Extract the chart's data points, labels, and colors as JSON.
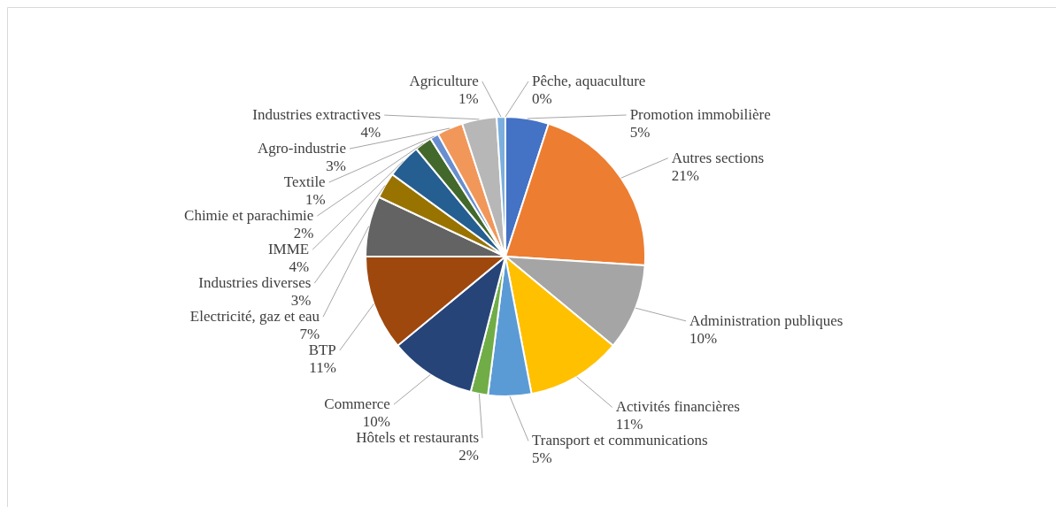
{
  "chart_data": {
    "type": "pie",
    "categories": [
      "Promotion immobilière",
      "Autres sections",
      "Administration publiques",
      "Activités financières",
      "Transport et communications",
      "Hôtels et restaurants",
      "Commerce",
      "BTP",
      "Electricité, gaz et eau",
      "Industries diverses",
      "IMME",
      "Chimie et parachimie",
      "Textile",
      "Agro-industrie",
      "Industries extractives",
      "Agriculture",
      "Pêche, aquaculture"
    ],
    "values": [
      5,
      21,
      10,
      11,
      5,
      2,
      10,
      11,
      7,
      3,
      4,
      2,
      1,
      3,
      4,
      1,
      0
    ],
    "colors": [
      "#4472c4",
      "#ed7d31",
      "#a5a5a5",
      "#ffc000",
      "#5b9bd5",
      "#70ad47",
      "#264478",
      "#9e480e",
      "#636363",
      "#997300",
      "#255e91",
      "#43682b",
      "#698ed0",
      "#f1975a",
      "#b7b7b7",
      "#7cafdd",
      "#8cc168"
    ],
    "value_labels": [
      "5%",
      "21%",
      "10%",
      "11%",
      "5%",
      "2%",
      "10%",
      "11%",
      "7%",
      "3%",
      "4%",
      "2%",
      "1%",
      "3%",
      "4%",
      "1%",
      "0%"
    ]
  }
}
